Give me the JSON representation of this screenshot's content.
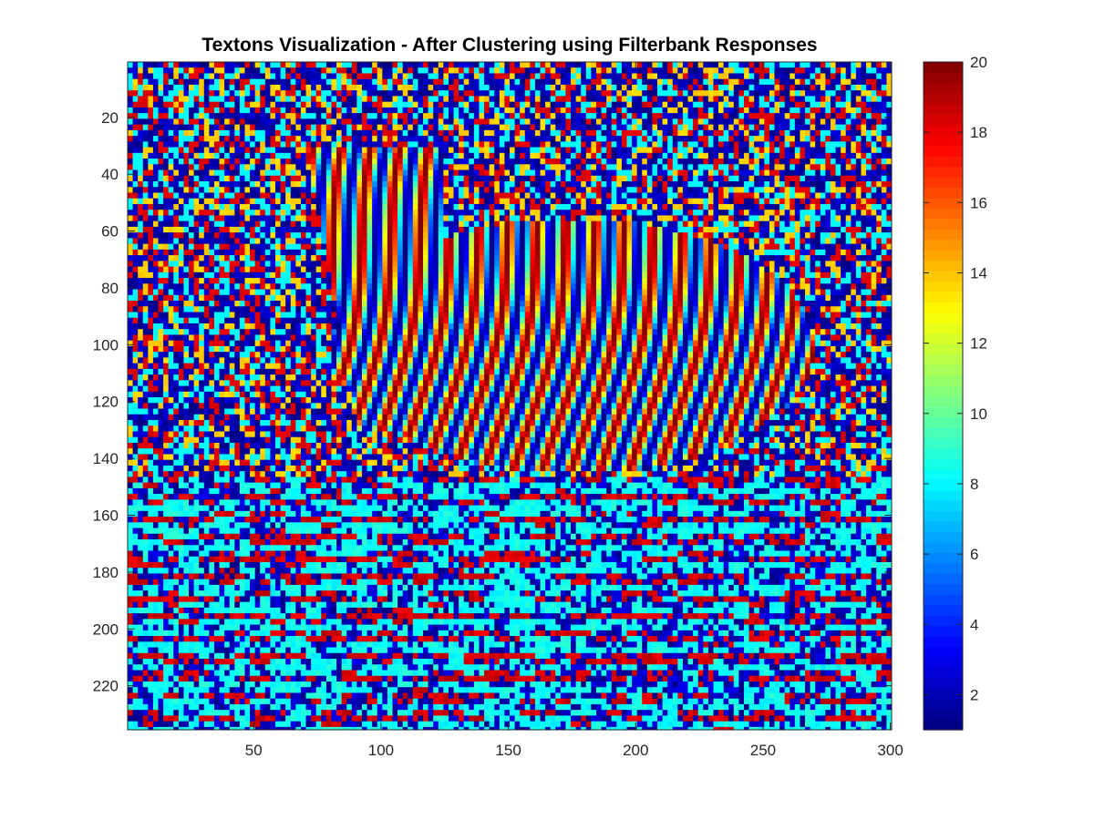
{
  "chart_data": {
    "type": "heatmap",
    "title": "Textons Visualization - After Clustering using Filterbank Responses",
    "xlabel": "",
    "ylabel": "",
    "xlim": [
      0.5,
      300.5
    ],
    "ylim": [
      0.5,
      235.5
    ],
    "y_reversed": true,
    "x_tick_values": [
      50,
      100,
      150,
      200,
      250,
      300
    ],
    "x_tick_labels": [
      "50",
      "100",
      "150",
      "200",
      "250",
      "300"
    ],
    "y_tick_values": [
      20,
      40,
      60,
      80,
      100,
      120,
      140,
      160,
      180,
      200,
      220
    ],
    "y_tick_labels": [
      "20",
      "40",
      "60",
      "80",
      "100",
      "120",
      "140",
      "160",
      "180",
      "200",
      "220"
    ],
    "colormap": "jet",
    "colorbar": {
      "range": [
        1,
        20
      ],
      "tick_values": [
        2,
        4,
        6,
        8,
        10,
        12,
        14,
        16,
        18,
        20
      ],
      "tick_labels": [
        "2",
        "4",
        "6",
        "8",
        "10",
        "12",
        "14",
        "16",
        "18",
        "20"
      ]
    },
    "grid": false,
    "legend": "none",
    "image_size": {
      "columns": 300,
      "rows": 235
    },
    "value_range": [
      1,
      20
    ]
  }
}
